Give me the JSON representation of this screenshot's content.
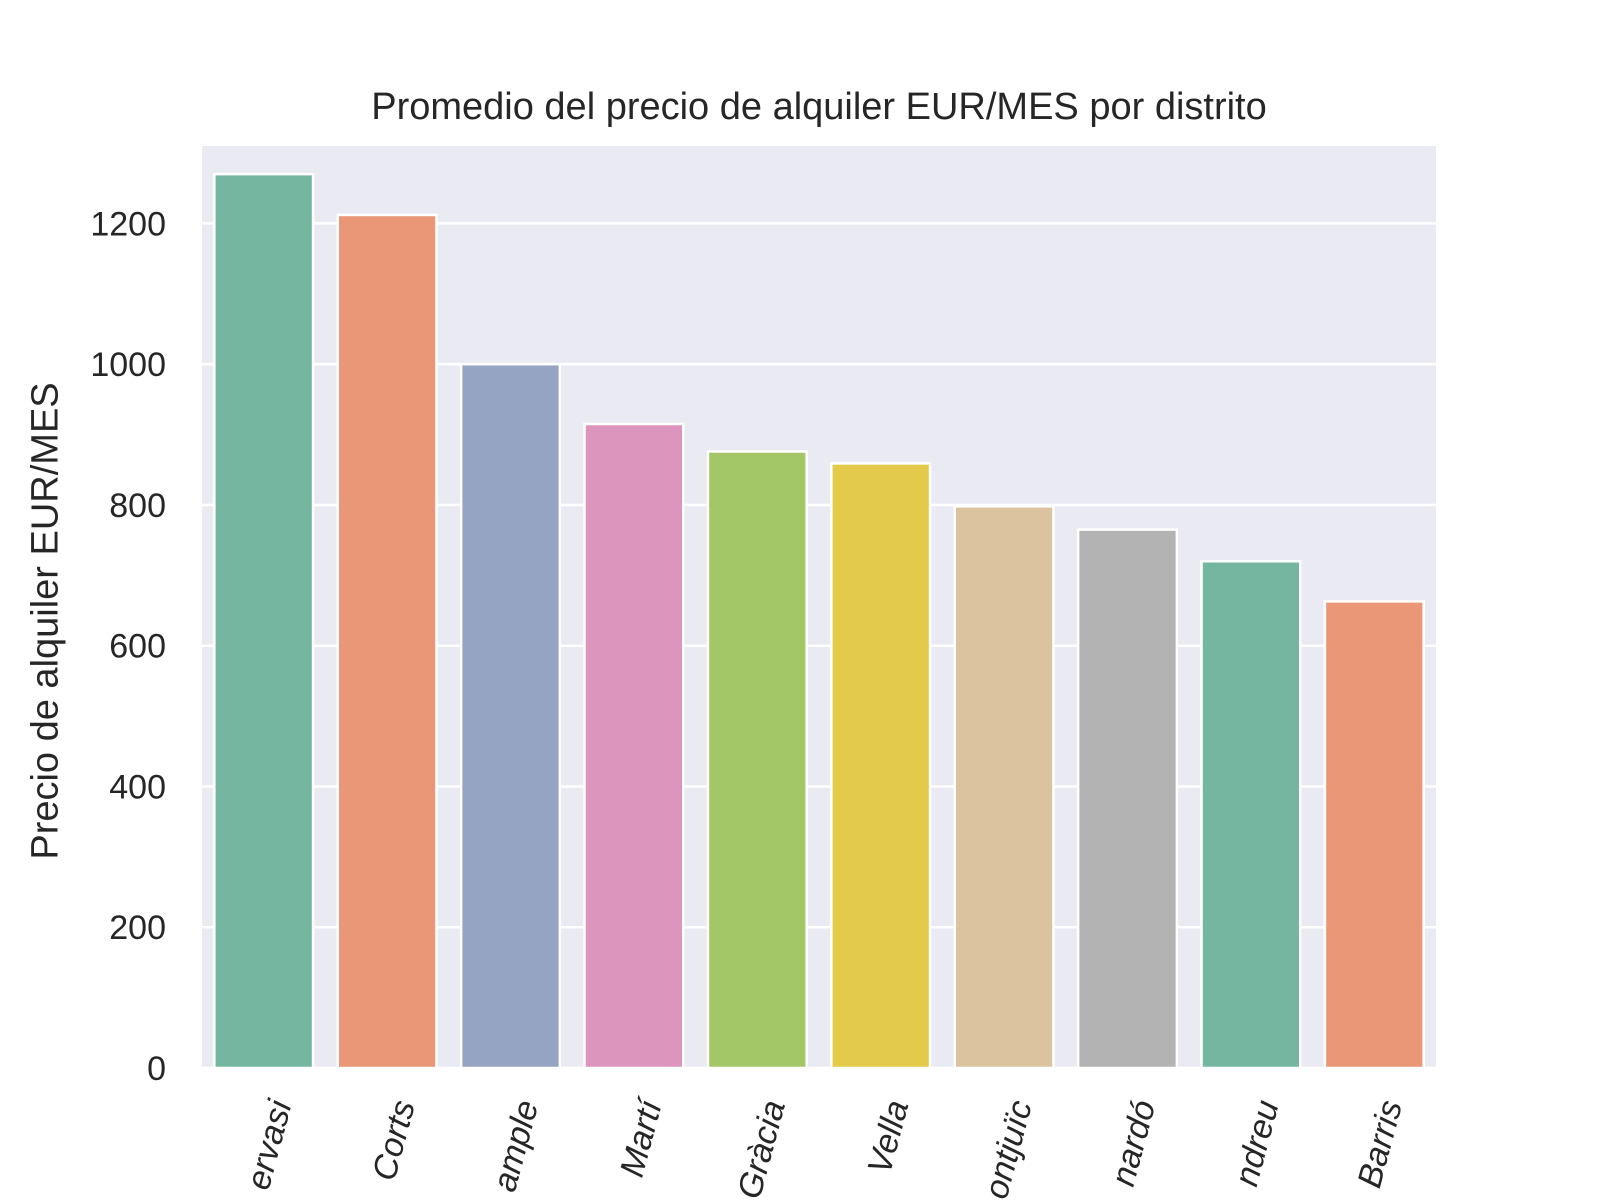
{
  "chart_data": {
    "type": "bar",
    "title": "Promedio del precio de alquiler EUR/MES por distrito",
    "xlabel": "",
    "ylabel": "Precio de alquiler EUR/MES",
    "ylim": [
      0,
      1310
    ],
    "yticks": [
      "0",
      "200",
      "400",
      "600",
      "800",
      "1000",
      "1200"
    ],
    "ytick_values": [
      0,
      200,
      400,
      600,
      800,
      1000,
      1200
    ],
    "categories": [
      "ervasi",
      "Corts",
      "ample",
      "Martí",
      "Gràcia",
      "Vella",
      "ontjuïc",
      "nardó",
      "ndreu",
      "Barris"
    ],
    "values": [
      1270,
      1212,
      1000,
      915,
      876,
      859,
      798,
      765,
      720,
      663
    ],
    "colors": [
      "#75b6a0",
      "#e99776",
      "#96a4c3",
      "#dc96bd",
      "#a3c766",
      "#e4ca4b",
      "#dac39e",
      "#b3b3b3",
      "#75b6a0",
      "#e99776"
    ],
    "grid": true,
    "background": "#eaeaf2",
    "grid_color": "#ffffff"
  }
}
